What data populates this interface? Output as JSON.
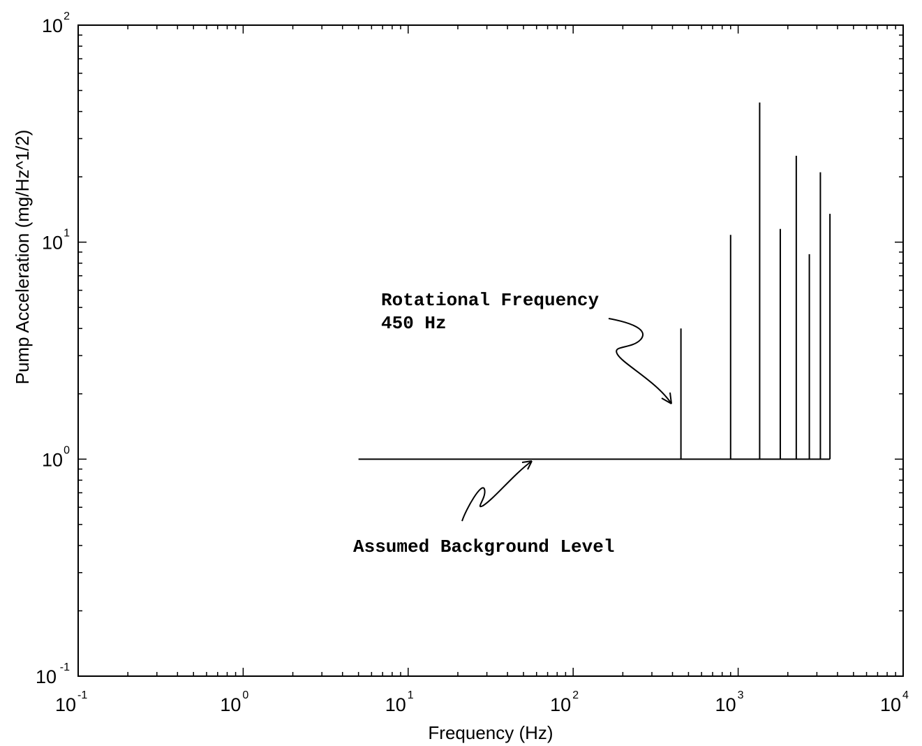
{
  "chart_data": {
    "type": "line",
    "title": "",
    "xlabel": "Frequency (Hz)",
    "ylabel": "Pump Acceleration (mg/Hz^1/2)",
    "xscale": "log",
    "yscale": "log",
    "xlim": [
      0.1,
      10000
    ],
    "ylim": [
      0.1,
      100
    ],
    "grid": false,
    "x_ticks": [
      {
        "base": "10",
        "exp": "-1"
      },
      {
        "base": "10",
        "exp": "0"
      },
      {
        "base": "10",
        "exp": "1"
      },
      {
        "base": "10",
        "exp": "2"
      },
      {
        "base": "10",
        "exp": "3"
      },
      {
        "base": "10",
        "exp": "4"
      }
    ],
    "y_ticks": [
      {
        "base": "10",
        "exp": "-1"
      },
      {
        "base": "10",
        "exp": "0"
      },
      {
        "base": "10",
        "exp": "1"
      },
      {
        "base": "10",
        "exp": "2"
      }
    ],
    "series": [
      {
        "background": {
          "x": [
            5,
            3600
          ],
          "y": 1.0
        },
        "peaks": [
          {
            "x": 450,
            "y": 4.0
          },
          {
            "x": 900,
            "y": 10.8
          },
          {
            "x": 1350,
            "y": 44
          },
          {
            "x": 1800,
            "y": 11.5
          },
          {
            "x": 2250,
            "y": 25
          },
          {
            "x": 2700,
            "y": 8.8
          },
          {
            "x": 3150,
            "y": 21
          },
          {
            "x": 3600,
            "y": 13.5
          }
        ]
      }
    ],
    "annotations": [
      {
        "lines": [
          "Rotational Frequency",
          "450 Hz"
        ]
      },
      {
        "lines": [
          "Assumed Background Level"
        ]
      }
    ]
  }
}
